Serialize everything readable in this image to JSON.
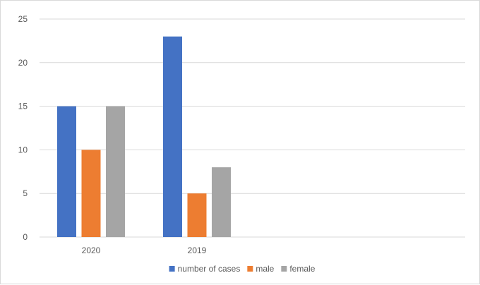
{
  "chart_data": {
    "type": "bar",
    "title": "",
    "xlabel": "",
    "ylabel": "",
    "categories": [
      "2020",
      "2019"
    ],
    "series": [
      {
        "name": "number of cases",
        "values": [
          15,
          23
        ],
        "color": "#4472C4"
      },
      {
        "name": "male",
        "values": [
          10,
          5
        ],
        "color": "#ED7D31"
      },
      {
        "name": "female",
        "values": [
          15,
          8
        ],
        "color": "#A5A5A5"
      }
    ],
    "ylim": [
      0,
      25
    ],
    "yticks": [
      0,
      5,
      10,
      15,
      20,
      25
    ],
    "grid": true,
    "legend_position": "bottom"
  }
}
